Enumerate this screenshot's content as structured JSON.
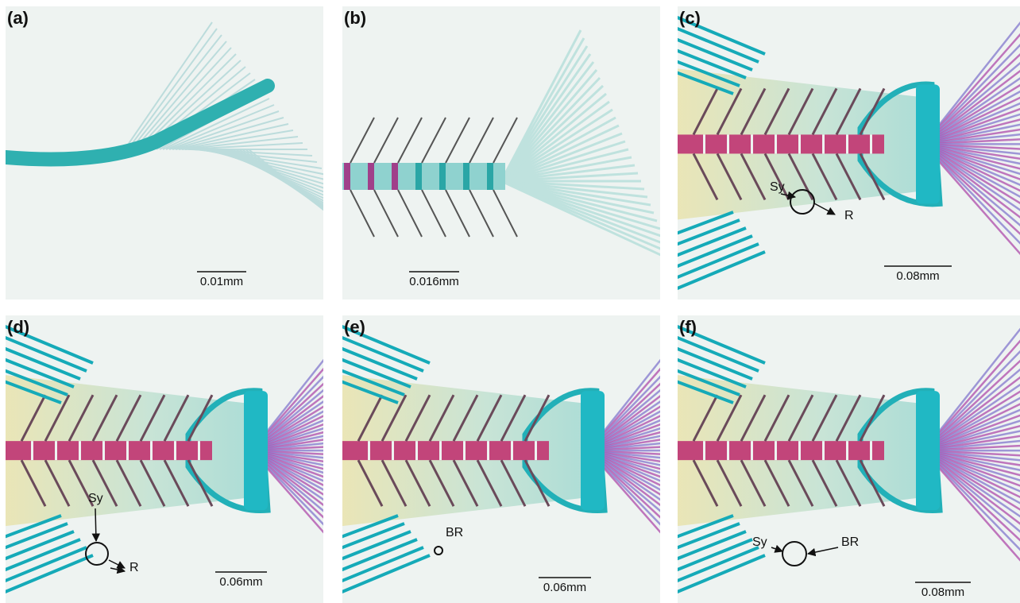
{
  "panels": [
    {
      "label": "(a)",
      "scale_bar": "0.01mm",
      "annotations": []
    },
    {
      "label": "(b)",
      "scale_bar": "0.016mm",
      "annotations": []
    },
    {
      "label": "(c)",
      "scale_bar": "0.08mm",
      "annotations": [
        "Sy",
        "R"
      ]
    },
    {
      "label": "(d)",
      "scale_bar": "0.06mm",
      "annotations": [
        "Sy",
        "R"
      ]
    },
    {
      "label": "(e)",
      "scale_bar": "0.06mm",
      "annotations": [
        "BR"
      ]
    },
    {
      "label": "(f)",
      "scale_bar": "0.08mm",
      "annotations": [
        "Sy",
        "BR"
      ]
    }
  ]
}
